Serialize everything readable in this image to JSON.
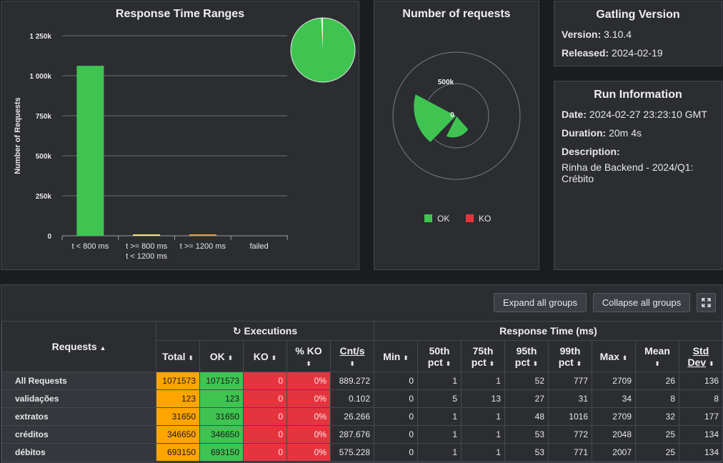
{
  "colors": {
    "ok": "#3fc452",
    "ko": "#e4353f",
    "total": "#ffa500",
    "panel": "#2b2d31"
  },
  "response_time_ranges": {
    "title": "Response Time Ranges",
    "chart_data": {
      "type": "bar",
      "title": "Response Time Ranges",
      "ylabel": "Number of Requests",
      "xlabel": "",
      "categories": [
        "t < 800 ms",
        "t >= 800 ms t < 1200 ms",
        "t >= 1200 ms",
        "failed"
      ],
      "values": [
        1062000,
        5500,
        3500,
        0
      ],
      "ylim": [
        0,
        1250000
      ],
      "yticks": [
        0,
        250000,
        500000,
        750000,
        1000000,
        1250000
      ],
      "ytick_labels": [
        "0",
        "250k",
        "500k",
        "750k",
        "1 000k",
        "1 250k"
      ],
      "bar_colors": [
        "#3fc452",
        "#f3e07a",
        "#e0a040",
        "#e4353f"
      ],
      "category_labels": [
        [
          "t < 800 ms"
        ],
        [
          "t >= 800 ms",
          "t < 1200 ms"
        ],
        [
          "t >= 1200 ms"
        ],
        [
          "failed"
        ]
      ]
    },
    "pie": {
      "ok_fraction": 0.991,
      "rest_fraction": 0.009
    }
  },
  "number_of_requests": {
    "title": "Number of requests",
    "chart_data": {
      "type": "polar",
      "series": [
        {
          "name": "OK",
          "color": "#3fc452"
        },
        {
          "name": "KO",
          "color": "#e4353f"
        }
      ],
      "radial_ticks": [
        "0",
        "500k"
      ],
      "legend": [
        "OK",
        "KO"
      ]
    }
  },
  "gatling": {
    "title": "Gatling Version",
    "version_label": "Version:",
    "version": "3.10.4",
    "released_label": "Released:",
    "released": "2024-02-19"
  },
  "run": {
    "title": "Run Information",
    "date_label": "Date:",
    "date": "2024-02-27 23:23:10 GMT",
    "duration_label": "Duration:",
    "duration": "20m 4s",
    "description_label": "Description:",
    "description": "Rinha de Backend - 2024/Q1: Crébito"
  },
  "buttons": {
    "expand": "Expand all groups",
    "collapse": "Collapse all groups"
  },
  "table": {
    "requests_header": "Requests",
    "executions_header": "Executions",
    "response_time_header": "Response Time (ms)",
    "columns": {
      "total": "Total",
      "ok": "OK",
      "ko": "KO",
      "pko": "% KO",
      "cnts": "Cnt/s",
      "min": "Min",
      "p50a": "50th",
      "p50b": "pct",
      "p75a": "75th",
      "p75b": "pct",
      "p95a": "95th",
      "p95b": "pct",
      "p99a": "99th",
      "p99b": "pct",
      "max": "Max",
      "mean": "Mean",
      "stda": "Std",
      "stdb": "Dev"
    },
    "rows": [
      {
        "name": "All Requests",
        "total": "1071573",
        "ok": "1071573",
        "ko": "0",
        "pko": "0%",
        "cnts": "889.272",
        "min": "0",
        "p50": "1",
        "p75": "1",
        "p95": "52",
        "p99": "777",
        "max": "2709",
        "mean": "26",
        "std": "136"
      },
      {
        "name": "validações",
        "total": "123",
        "ok": "123",
        "ko": "0",
        "pko": "0%",
        "cnts": "0.102",
        "min": "0",
        "p50": "5",
        "p75": "13",
        "p95": "27",
        "p99": "31",
        "max": "34",
        "mean": "8",
        "std": "8"
      },
      {
        "name": "extratos",
        "total": "31650",
        "ok": "31650",
        "ko": "0",
        "pko": "0%",
        "cnts": "26.266",
        "min": "0",
        "p50": "1",
        "p75": "1",
        "p95": "48",
        "p99": "1016",
        "max": "2709",
        "mean": "32",
        "std": "177"
      },
      {
        "name": "créditos",
        "total": "346650",
        "ok": "346650",
        "ko": "0",
        "pko": "0%",
        "cnts": "287.676",
        "min": "0",
        "p50": "1",
        "p75": "1",
        "p95": "53",
        "p99": "772",
        "max": "2048",
        "mean": "25",
        "std": "134"
      },
      {
        "name": "débitos",
        "total": "693150",
        "ok": "693150",
        "ko": "0",
        "pko": "0%",
        "cnts": "575.228",
        "min": "0",
        "p50": "1",
        "p75": "1",
        "p95": "53",
        "p99": "771",
        "max": "2007",
        "mean": "25",
        "std": "134"
      }
    ]
  }
}
